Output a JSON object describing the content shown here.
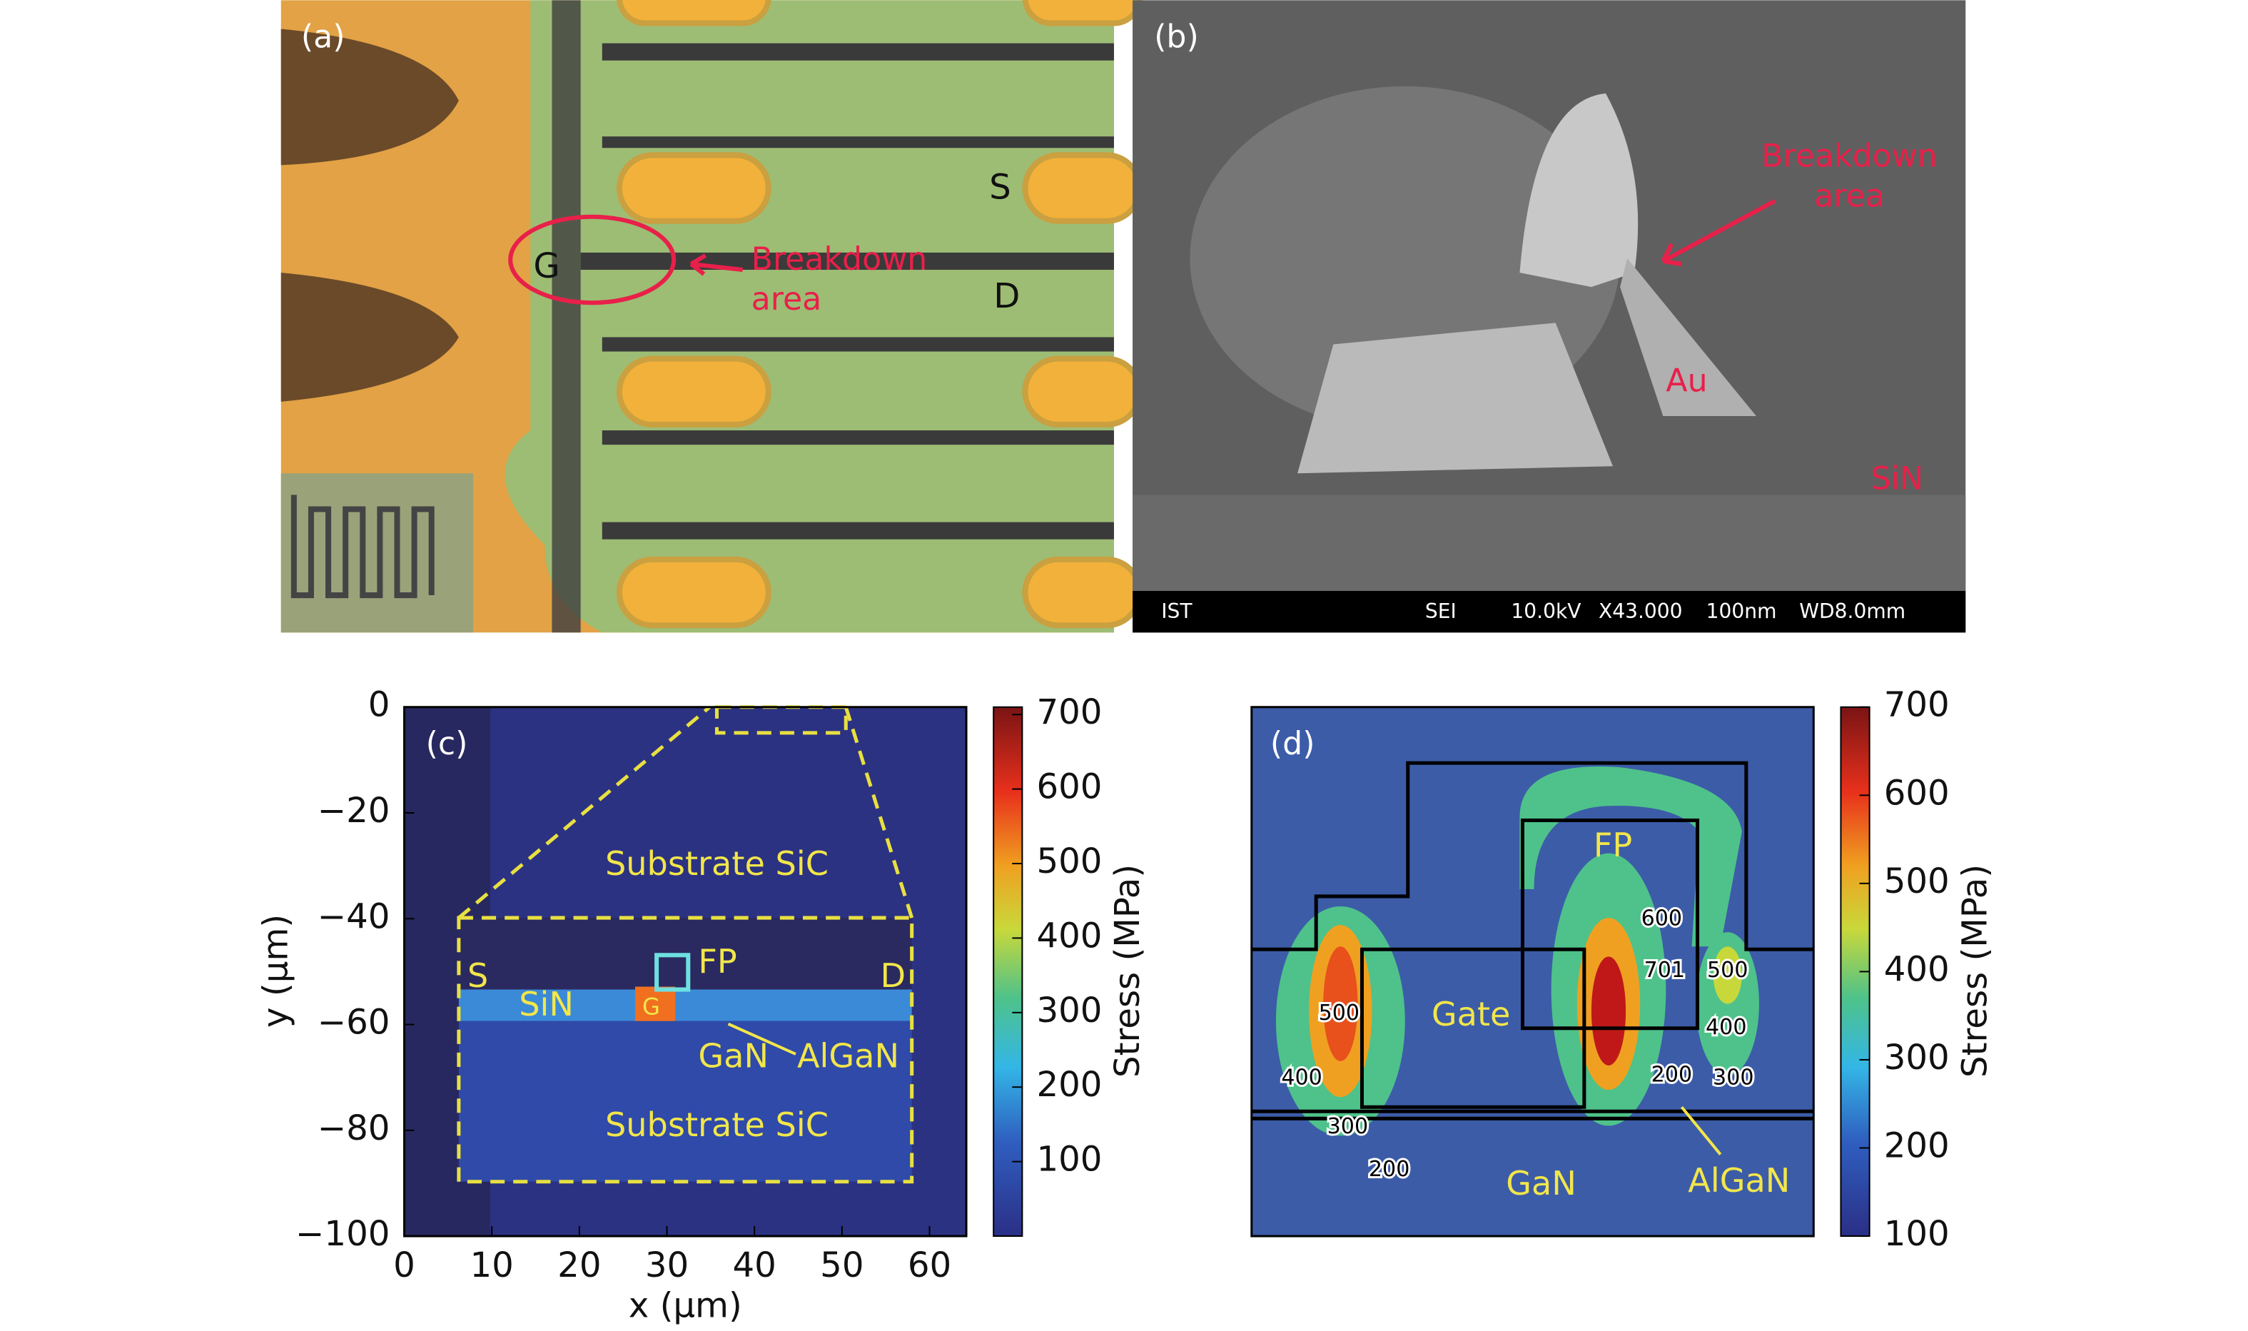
{
  "panels": {
    "a": {
      "label": "(a)",
      "gate": "G",
      "source": "S",
      "drain": "D",
      "breakdown": [
        "Breakdown",
        "area"
      ]
    },
    "b": {
      "label": "(b)",
      "breakdown": [
        "Breakdown",
        "area"
      ],
      "metal": "Au",
      "passivation": "SiN",
      "info_bar": [
        "IST",
        "SEI",
        "10.0kV",
        "X43.000",
        "100nm",
        "WD8.0mm"
      ]
    },
    "c": {
      "label": "(c)",
      "x_label": "x (μm)",
      "y_label": "y (μm)",
      "xlim": [
        0,
        64.2
      ],
      "ylim": [
        -100,
        0
      ],
      "xticks": [
        0,
        10,
        20,
        30,
        40,
        50,
        60
      ],
      "yticks": [
        0,
        {
          "value": -20,
          "label": "−20"
        },
        {
          "value": -40,
          "label": "−40"
        },
        {
          "value": -60,
          "label": "−60"
        },
        {
          "value": -80,
          "label": "−80"
        },
        {
          "value": -100,
          "label": "−100"
        }
      ],
      "colorbar": {
        "label": "Stress (MPa)",
        "lim": [
          0,
          710
        ],
        "ticks": [
          100,
          200,
          300,
          400,
          500,
          600,
          700
        ]
      },
      "regions": {
        "substrate_top": "Substrate SiC",
        "substrate_bottom": "Substrate SiC",
        "source": "S",
        "drain": "D",
        "passivation": "SiN",
        "gate": "G",
        "field_plate": "FP",
        "buffer": "GaN",
        "barrier": "AlGaN"
      }
    },
    "d": {
      "label": "(d)",
      "colorbar": {
        "label": "Stress (MPa)",
        "lim": [
          100,
          700
        ],
        "ticks": [
          100,
          200,
          300,
          400,
          500,
          600,
          700
        ]
      },
      "regions": {
        "gate": "Gate",
        "field_plate": "FP",
        "buffer": "GaN",
        "barrier": "AlGaN"
      },
      "contour_labels": [
        600,
        701,
        500,
        400,
        200,
        300,
        500,
        400,
        300,
        200
      ]
    }
  }
}
